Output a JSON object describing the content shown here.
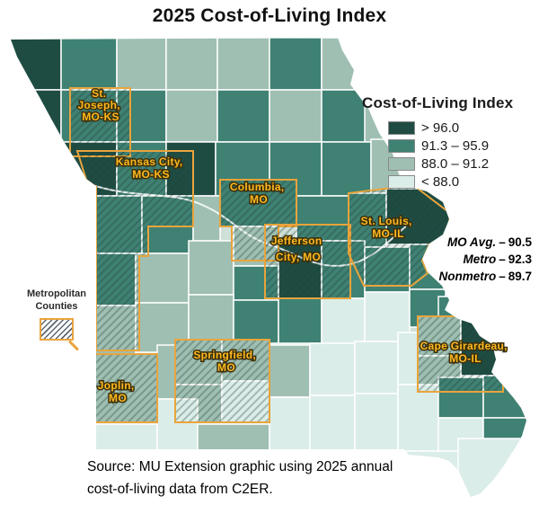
{
  "title": "2025 Cost-of-Living Index",
  "legend": {
    "title": "Cost-of-Living Index",
    "items": [
      {
        "label": "> 96.0",
        "color": "#1E4C43"
      },
      {
        "label": "91.3 – 95.9",
        "color": "#3F8173"
      },
      {
        "label": "88.0 – 91.2",
        "color": "#9FBFB2"
      },
      {
        "label": "< 88.0",
        "color": "#DBEDE8"
      }
    ]
  },
  "stats": {
    "rows": [
      {
        "label": "MO Avg.",
        "dash": "–",
        "value": "90.5"
      },
      {
        "label": "Metro",
        "dash": "–",
        "value": "92.3"
      },
      {
        "label": "Nonmetro",
        "dash": "–",
        "value": "89.7"
      }
    ]
  },
  "metro_note": {
    "line1": "Metropolitan",
    "line2": "Counties"
  },
  "source": {
    "line1": "Source: MU Extension graphic using 2025 annual",
    "line2": "cost-of-living data from C2ER."
  },
  "map": {
    "palette": {
      "D": "#1E4C43",
      "M": "#3F8173",
      "L": "#9FBFB2",
      "P": "#DBEDE8"
    },
    "base_color": "#CFE0D9",
    "county_line_color": "#FFFFFF",
    "metro_border_color": "#E9A43C",
    "cells": [
      [
        10,
        42,
        58,
        58,
        "D"
      ],
      [
        68,
        42,
        62,
        58,
        "M"
      ],
      [
        130,
        42,
        55,
        58,
        "L"
      ],
      [
        185,
        42,
        57,
        58,
        "L"
      ],
      [
        242,
        42,
        58,
        58,
        "L"
      ],
      [
        300,
        42,
        58,
        58,
        "M"
      ],
      [
        358,
        42,
        60,
        58,
        "L"
      ],
      [
        10,
        100,
        58,
        58,
        "D"
      ],
      [
        68,
        100,
        62,
        58,
        "M"
      ],
      [
        130,
        100,
        55,
        58,
        "M"
      ],
      [
        185,
        100,
        57,
        58,
        "L"
      ],
      [
        242,
        100,
        58,
        58,
        "M"
      ],
      [
        300,
        100,
        58,
        58,
        "L"
      ],
      [
        358,
        100,
        55,
        58,
        "M"
      ],
      [
        406,
        112,
        54,
        58,
        "L"
      ],
      [
        60,
        158,
        70,
        60,
        "D"
      ],
      [
        130,
        158,
        55,
        60,
        "M"
      ],
      [
        185,
        158,
        55,
        60,
        "D"
      ],
      [
        240,
        158,
        60,
        60,
        "M"
      ],
      [
        300,
        158,
        58,
        60,
        "M"
      ],
      [
        358,
        158,
        55,
        60,
        "M"
      ],
      [
        413,
        155,
        55,
        60,
        "L"
      ],
      [
        96,
        218,
        62,
        64,
        "M"
      ],
      [
        158,
        218,
        57,
        64,
        "M"
      ],
      [
        215,
        218,
        30,
        50,
        "L"
      ],
      [
        245,
        200,
        85,
        52,
        "M"
      ],
      [
        330,
        218,
        58,
        50,
        "M"
      ],
      [
        388,
        215,
        42,
        60,
        "M"
      ],
      [
        430,
        210,
        72,
        62,
        "D"
      ],
      [
        96,
        282,
        55,
        58,
        "M"
      ],
      [
        151,
        282,
        59,
        55,
        "L"
      ],
      [
        210,
        268,
        50,
        60,
        "L"
      ],
      [
        260,
        252,
        50,
        44,
        "L"
      ],
      [
        260,
        296,
        50,
        38,
        "M"
      ],
      [
        310,
        268,
        48,
        64,
        "D"
      ],
      [
        358,
        268,
        48,
        64,
        "M"
      ],
      [
        406,
        275,
        50,
        50,
        "M"
      ],
      [
        456,
        272,
        46,
        50,
        "M"
      ],
      [
        96,
        340,
        55,
        55,
        "L"
      ],
      [
        151,
        337,
        59,
        55,
        "L"
      ],
      [
        210,
        328,
        50,
        54,
        "L"
      ],
      [
        260,
        334,
        50,
        48,
        "M"
      ],
      [
        310,
        332,
        48,
        50,
        "M"
      ],
      [
        358,
        332,
        48,
        52,
        "P"
      ],
      [
        406,
        325,
        50,
        55,
        "P"
      ],
      [
        456,
        322,
        40,
        42,
        "M"
      ],
      [
        488,
        330,
        45,
        40,
        "M"
      ],
      [
        100,
        394,
        75,
        78,
        "L"
      ],
      [
        175,
        384,
        45,
        60,
        "L"
      ],
      [
        195,
        378,
        52,
        50,
        "L"
      ],
      [
        247,
        378,
        53,
        46,
        "L"
      ],
      [
        195,
        428,
        52,
        44,
        "L"
      ],
      [
        247,
        424,
        53,
        46,
        "P"
      ],
      [
        300,
        384,
        45,
        58,
        "L"
      ],
      [
        345,
        382,
        50,
        58,
        "P"
      ],
      [
        395,
        380,
        48,
        58,
        "P"
      ],
      [
        443,
        370,
        45,
        58,
        "P"
      ],
      [
        465,
        352,
        48,
        44,
        "L"
      ],
      [
        513,
        352,
        47,
        66,
        "D"
      ],
      [
        465,
        396,
        48,
        40,
        "L"
      ],
      [
        96,
        472,
        79,
        30,
        "P"
      ],
      [
        175,
        444,
        45,
        58,
        "P"
      ],
      [
        220,
        472,
        80,
        30,
        "L"
      ],
      [
        300,
        442,
        45,
        60,
        "P"
      ],
      [
        345,
        440,
        50,
        62,
        "P"
      ],
      [
        395,
        438,
        48,
        64,
        "P"
      ],
      [
        443,
        428,
        45,
        74,
        "P"
      ],
      [
        488,
        420,
        50,
        45,
        "M"
      ],
      [
        538,
        418,
        52,
        47,
        "M"
      ],
      [
        488,
        465,
        50,
        38,
        "P"
      ],
      [
        538,
        465,
        52,
        38,
        "M"
      ],
      [
        450,
        502,
        75,
        53,
        "P"
      ],
      [
        510,
        488,
        80,
        67,
        "P"
      ]
    ],
    "metros": [
      {
        "id": "st-joseph",
        "lines": [
          "St.",
          "Joseph,",
          "MO-KS"
        ],
        "points": [
          [
            78,
            98
          ],
          [
            145,
            98
          ],
          [
            145,
            174
          ],
          [
            78,
            174
          ]
        ]
      },
      {
        "id": "kansas-city",
        "lines": [
          "Kansas City,",
          "MO-KS"
        ],
        "points": [
          [
            86,
            168
          ],
          [
            215,
            168
          ],
          [
            215,
            252
          ],
          [
            165,
            252
          ],
          [
            165,
            285
          ],
          [
            155,
            285
          ],
          [
            155,
            390
          ],
          [
            107,
            390
          ],
          [
            107,
            208
          ],
          [
            96,
            200
          ]
        ]
      },
      {
        "id": "columbia",
        "lines": [
          "Columbia,",
          "MO"
        ],
        "points": [
          [
            245,
            200
          ],
          [
            330,
            200
          ],
          [
            330,
            252
          ],
          [
            310,
            252
          ],
          [
            310,
            290
          ],
          [
            258,
            290
          ],
          [
            258,
            252
          ],
          [
            245,
            252
          ]
        ]
      },
      {
        "id": "jefferson-city",
        "lines": [
          "Jefferson",
          "City, MO"
        ],
        "points": [
          [
            295,
            250
          ],
          [
            390,
            250
          ],
          [
            390,
            332
          ],
          [
            295,
            332
          ]
        ]
      },
      {
        "id": "st-louis",
        "lines": [
          "St. Louis,",
          "MO-IL"
        ],
        "points": [
          [
            388,
            215
          ],
          [
            460,
            206
          ],
          [
            502,
            238
          ],
          [
            496,
            262
          ],
          [
            478,
            272
          ],
          [
            470,
            290
          ],
          [
            476,
            304
          ],
          [
            458,
            318
          ],
          [
            405,
            318
          ],
          [
            388,
            282
          ]
        ]
      },
      {
        "id": "springfield",
        "lines": [
          "Springfield,",
          "MO"
        ],
        "points": [
          [
            195,
            378
          ],
          [
            300,
            378
          ],
          [
            300,
            470
          ],
          [
            195,
            470
          ]
        ]
      },
      {
        "id": "joplin",
        "lines": [
          "Joplin,",
          "MO"
        ],
        "points": [
          [
            100,
            394
          ],
          [
            175,
            394
          ],
          [
            175,
            470
          ],
          [
            100,
            470
          ]
        ]
      },
      {
        "id": "cape-girardeau",
        "lines": [
          "Cape Girardeau,",
          "MO-IL"
        ],
        "points": [
          [
            465,
            352
          ],
          [
            560,
            352
          ],
          [
            560,
            436
          ],
          [
            465,
            436
          ]
        ]
      }
    ]
  },
  "chart_data": {
    "type": "choropleth",
    "title": "2025 Cost-of-Living Index",
    "legend_title": "Cost-of-Living Index",
    "region": "Missouri counties",
    "classes": [
      {
        "range": "> 96.0",
        "color": "#1E4C43"
      },
      {
        "range": "91.3 – 95.9",
        "color": "#3F8173"
      },
      {
        "range": "88.0 – 91.2",
        "color": "#9FBFB2"
      },
      {
        "range": "< 88.0",
        "color": "#DBEDE8"
      }
    ],
    "summary_values": [
      {
        "label": "MO Avg.",
        "value": 90.5
      },
      {
        "label": "Metro",
        "value": 92.3
      },
      {
        "label": "Nonmetro",
        "value": 89.7
      }
    ],
    "metro_areas": [
      "St. Joseph, MO-KS",
      "Kansas City, MO-KS",
      "Columbia, MO",
      "Jefferson City, MO",
      "St. Louis, MO-IL",
      "Springfield, MO",
      "Joplin, MO",
      "Cape Girardeau, MO-IL"
    ],
    "annotations": [
      "Metropolitan Counties (hatched)"
    ],
    "source": "Source: MU Extension graphic using 2025 annual cost-of-living data from C2ER."
  }
}
